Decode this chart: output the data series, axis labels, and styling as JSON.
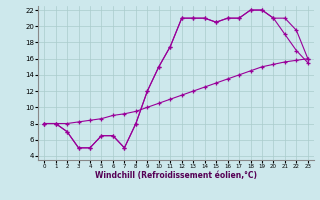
{
  "xlabel": "Windchill (Refroidissement éolien,°C)",
  "background_color": "#cde8ec",
  "grid_color": "#aacccc",
  "line_color": "#990099",
  "xlim": [
    -0.5,
    23.5
  ],
  "ylim": [
    3.5,
    22.5
  ],
  "xticks": [
    0,
    1,
    2,
    3,
    4,
    5,
    6,
    7,
    8,
    9,
    10,
    11,
    12,
    13,
    14,
    15,
    16,
    17,
    18,
    19,
    20,
    21,
    22,
    23
  ],
  "yticks": [
    4,
    6,
    8,
    10,
    12,
    14,
    16,
    18,
    20,
    22
  ],
  "line1_x": [
    0,
    1,
    2,
    3,
    4,
    5,
    6,
    7,
    8,
    9,
    10,
    11,
    12,
    13,
    14,
    15,
    16,
    17,
    18,
    19,
    20,
    21,
    22,
    23
  ],
  "line1_y": [
    8,
    8,
    7,
    5,
    5,
    6.5,
    6.5,
    5,
    8,
    12,
    15,
    17.5,
    21,
    21,
    21,
    20.5,
    21,
    21,
    22,
    22,
    21,
    19,
    17,
    15.5
  ],
  "line2_x": [
    0,
    1,
    2,
    3,
    4,
    5,
    6,
    7,
    8,
    9,
    10,
    11,
    12,
    13,
    14,
    15,
    16,
    17,
    18,
    19,
    20,
    21,
    22,
    23
  ],
  "line2_y": [
    8,
    8,
    7,
    5,
    5,
    6.5,
    6.5,
    5,
    8,
    12,
    15,
    17.5,
    21,
    21,
    21,
    20.5,
    21,
    21,
    22,
    22,
    21,
    21,
    19.5,
    16
  ],
  "line3_x": [
    0,
    1,
    2,
    3,
    4,
    5,
    6,
    7,
    8,
    9,
    10,
    11,
    12,
    13,
    14,
    15,
    16,
    17,
    18,
    19,
    20,
    21,
    22,
    23
  ],
  "line3_y": [
    8,
    8,
    8,
    8.2,
    8.4,
    8.6,
    9.0,
    9.2,
    9.5,
    10.0,
    10.5,
    11.0,
    11.5,
    12.0,
    12.5,
    13.0,
    13.5,
    14.0,
    14.5,
    15.0,
    15.3,
    15.6,
    15.8,
    16.0
  ]
}
